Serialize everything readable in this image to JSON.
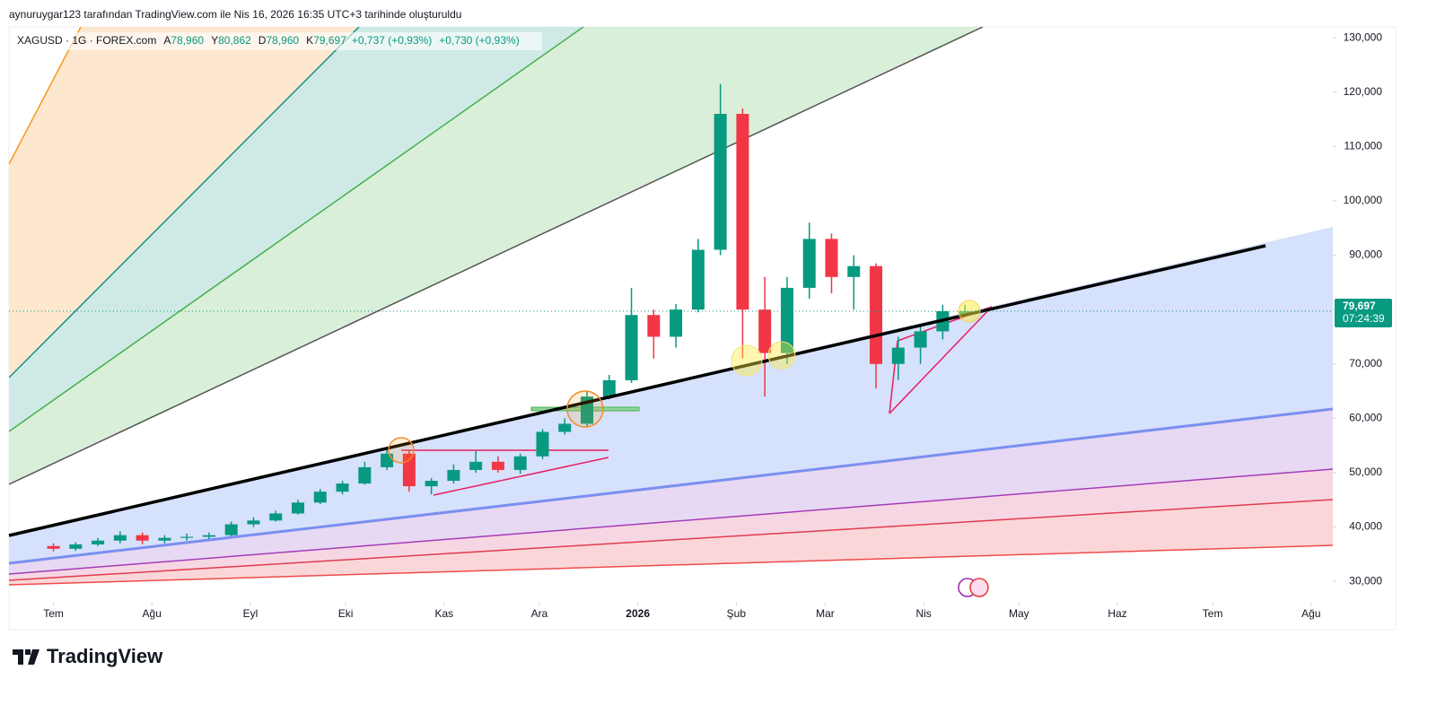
{
  "header": {
    "attribution": "aynuruygar123 tarafından TradingView.com ile Nis 16, 2026 16:35 UTC+3 tarihinde oluşturuldu"
  },
  "legend": {
    "symbol": "XAGUSD · 1G · FOREX.com",
    "ohlc": [
      {
        "label": "A",
        "value": "78,960"
      },
      {
        "label": "Y",
        "value": "80,862"
      },
      {
        "label": "D",
        "value": "78,960"
      },
      {
        "label": "K",
        "value": "79,697"
      }
    ],
    "change": "+0,737 (+0,93%)",
    "change_extended": "+0,730 (+0,93%)"
  },
  "chart_data": {
    "type": "candlestick",
    "x": [
      0,
      7,
      14,
      21,
      28,
      35,
      42,
      49,
      56,
      63,
      70,
      77,
      84,
      91,
      98,
      105,
      112,
      119,
      126,
      133,
      140,
      147,
      154,
      161,
      168,
      175,
      182,
      189,
      196,
      203,
      210,
      217,
      224,
      231,
      238,
      245,
      252,
      259,
      266,
      273,
      280,
      287
    ],
    "open": [
      36500,
      36000,
      36800,
      37500,
      38500,
      37500,
      38000,
      38200,
      38500,
      40500,
      41200,
      42500,
      44500,
      46500,
      48000,
      51000,
      53500,
      47500,
      48500,
      50500,
      52000,
      50500,
      53000,
      57500,
      59000,
      64000,
      67000,
      79000,
      75000,
      80000,
      91000,
      116000,
      80000,
      72000,
      84000,
      93000,
      86000,
      88000,
      70000,
      73000,
      76000,
      78960
    ],
    "high": [
      37000,
      37200,
      38000,
      39200,
      39000,
      38500,
      38800,
      39000,
      41000,
      41800,
      43000,
      45000,
      47000,
      48500,
      52000,
      54500,
      54000,
      49000,
      51500,
      54000,
      53000,
      53500,
      58000,
      60000,
      65000,
      68000,
      84000,
      80000,
      81000,
      93000,
      121500,
      117000,
      86000,
      86000,
      96000,
      94000,
      90000,
      88500,
      75000,
      77000,
      80900,
      80862
    ],
    "low": [
      35500,
      35600,
      36500,
      37000,
      36800,
      37000,
      37500,
      37800,
      38300,
      40000,
      41000,
      42300,
      44200,
      46000,
      47800,
      50500,
      46500,
      46000,
      48000,
      50000,
      50000,
      49800,
      52500,
      57000,
      58500,
      63500,
      66500,
      71000,
      73000,
      79500,
      90000,
      71000,
      64000,
      70000,
      82000,
      83000,
      80000,
      65500,
      67000,
      70000,
      74500,
      78960
    ],
    "close": [
      36000,
      36800,
      37500,
      38500,
      37500,
      38000,
      38200,
      38500,
      40500,
      41200,
      42500,
      44500,
      46500,
      48000,
      51000,
      53500,
      47500,
      48500,
      50500,
      52000,
      50500,
      53000,
      57500,
      59000,
      64000,
      67000,
      79000,
      75000,
      80000,
      91000,
      116000,
      80000,
      72000,
      84000,
      93000,
      86000,
      88000,
      70000,
      73000,
      76000,
      79700,
      79697
    ],
    "up_color": "#089981",
    "down_color": "#f23645",
    "xlim": [
      -14,
      400
    ],
    "xticks": [
      {
        "value": 0,
        "label": "Tem"
      },
      {
        "value": 31,
        "label": "Ağu"
      },
      {
        "value": 62,
        "label": "Eyl"
      },
      {
        "value": 92,
        "label": "Eki"
      },
      {
        "value": 123,
        "label": "Kas"
      },
      {
        "value": 153,
        "label": "Ara"
      },
      {
        "value": 184,
        "label": "2026"
      },
      {
        "value": 215,
        "label": "Şub"
      },
      {
        "value": 243,
        "label": "Mar"
      },
      {
        "value": 274,
        "label": "Nis"
      },
      {
        "value": 304,
        "label": "May"
      },
      {
        "value": 335,
        "label": "Haz"
      },
      {
        "value": 365,
        "label": "Tem"
      },
      {
        "value": 396,
        "label": "Ağu"
      }
    ],
    "ylim": [
      26400,
      132000
    ],
    "yticks": [
      {
        "value": 30000,
        "label": "30,000"
      },
      {
        "value": 40000,
        "label": "40,000"
      },
      {
        "value": 50000,
        "label": "50,000"
      },
      {
        "value": 60000,
        "label": "60,000"
      },
      {
        "value": 70000,
        "label": "70,000"
      },
      {
        "value": 80000,
        "label": "80,000"
      },
      {
        "value": 90000,
        "label": "90,000"
      },
      {
        "value": 100000,
        "label": "100,000"
      },
      {
        "value": 110000,
        "label": "110,000"
      },
      {
        "value": 120000,
        "label": "120,000"
      },
      {
        "value": 130000,
        "label": "130,000"
      }
    ],
    "last_price": {
      "value": 79697,
      "label": "79,697"
    },
    "countdown": "07:24:39"
  },
  "footer": {
    "brand": "TradingView"
  }
}
